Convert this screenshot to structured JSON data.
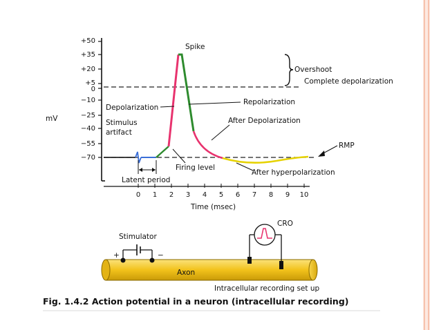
{
  "chart_data": {
    "type": "line",
    "y_axis_label": "mV",
    "y_ticks": [
      "+50",
      "+35",
      "+20",
      "+5",
      "0",
      "−10",
      "−25",
      "−40",
      "−55",
      "−70"
    ],
    "x_axis_label": "Time (msec)",
    "x_ticks": [
      "0",
      "1",
      "2",
      "3",
      "4",
      "5",
      "6",
      "7",
      "8",
      "9",
      "10"
    ],
    "annotations": {
      "spike": "Spike",
      "overshoot": "Overshoot",
      "complete_depolarization": "Complete depolarization",
      "depolarization": "Depolarization",
      "repolarization": "Repolarization",
      "stimulus_line1": "Stimulus",
      "stimulus_line2": "artifact",
      "after_depolarization": "After Depolarization",
      "rmp": "RMP",
      "firing_level": "Firing level",
      "after_hyperpolarization": "After hyperpolarization",
      "latent_period": "Latent period"
    }
  },
  "setup": {
    "stimulator": "Stimulator",
    "plus": "+",
    "minus": "−",
    "cro": "CRO",
    "axon": "Axon",
    "recording": "Intracellular recording set up"
  },
  "caption": "Fig. 1.4.2 Action potential in a neuron (intracellular recording)",
  "colors": {
    "depolarization_segment": "#e8336e",
    "repolarization_segment": "#2e8b2e",
    "after_hyperpolarization_segment": "#e6d200",
    "latent_segment": "#3a6fd8",
    "axon_fill": "#f2c21b",
    "slide_border": "#f2a98b"
  }
}
